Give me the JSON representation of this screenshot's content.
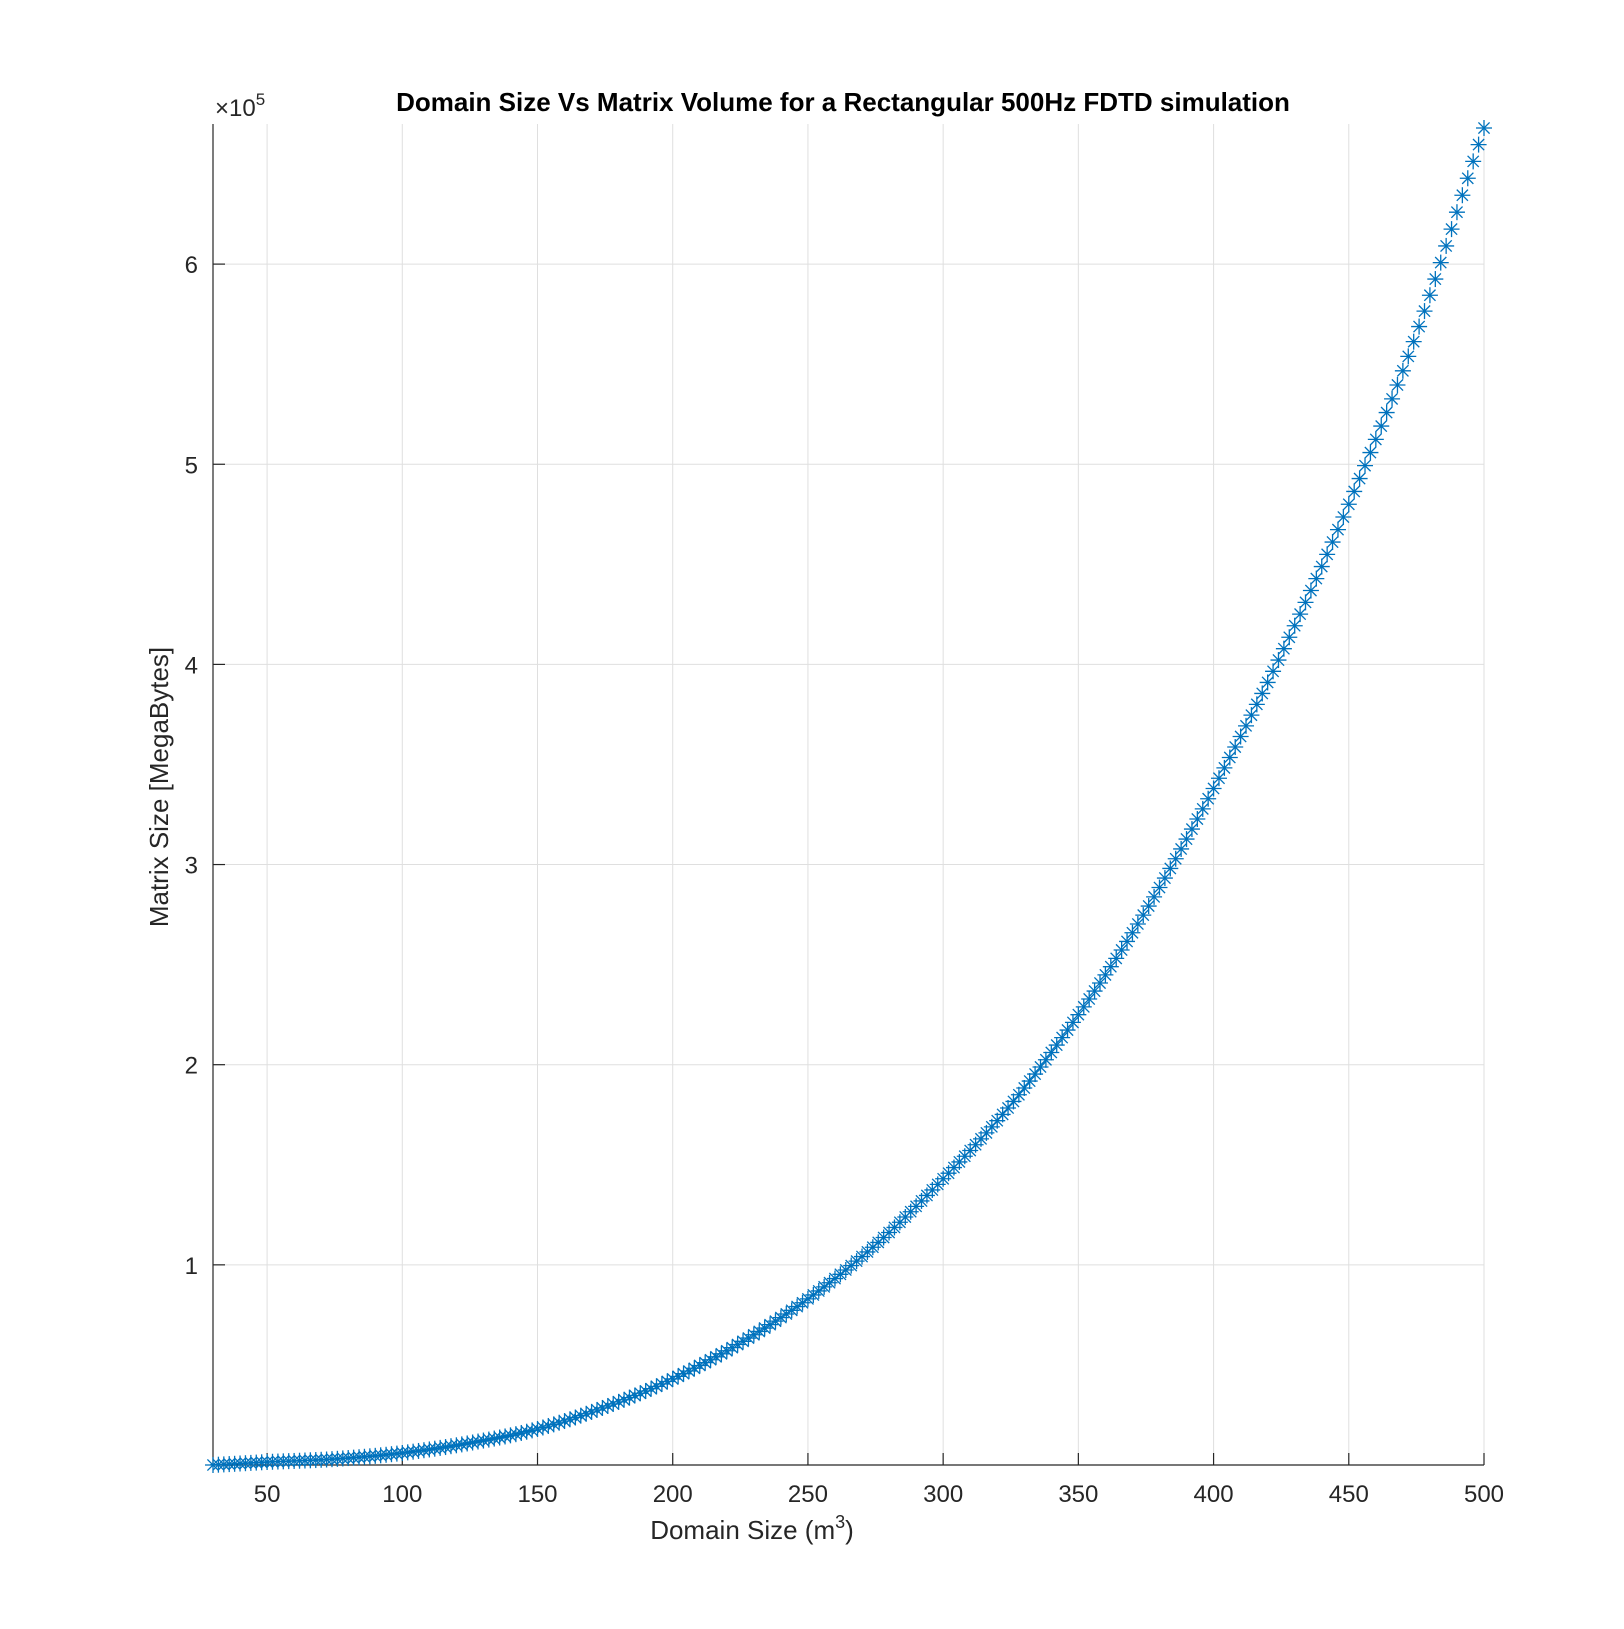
{
  "chart_data": {
    "type": "scatter",
    "title": "Domain Size Vs Matrix Volume for a Rectangular 500Hz FDTD simulation",
    "xlabel": "Domain Size (m",
    "xlabel_superscript": "3",
    "xlabel_suffix": ")",
    "ylabel": "Matrix Size [MegaBytes]",
    "y_exponent_label": "×10",
    "y_exponent_power": "5",
    "y_multiplier": 100000,
    "xlim": [
      30,
      500
    ],
    "ylim": [
      0,
      670000
    ],
    "x_ticks": [
      50,
      100,
      150,
      200,
      250,
      300,
      350,
      400,
      450,
      500
    ],
    "x_tick_labels": [
      "50",
      "100",
      "150",
      "200",
      "250",
      "300",
      "350",
      "400",
      "450",
      "500"
    ],
    "y_ticks": [
      100000,
      200000,
      300000,
      400000,
      500000,
      600000
    ],
    "y_tick_labels": [
      "1",
      "2",
      "3",
      "4",
      "5",
      "6"
    ],
    "grid": true,
    "marker": "asterisk",
    "series_color": "#0072BD",
    "series": [
      {
        "x": [
          30,
          50,
          75,
          100,
          125,
          150,
          175,
          200,
          225,
          250,
          275,
          300,
          325,
          350,
          375,
          400,
          425,
          450,
          475,
          500
        ],
        "y": [
          0,
          1500,
          3000,
          6000,
          11000,
          18000,
          29000,
          43000,
          61000,
          83000,
          110000,
          143000,
          180000,
          225000,
          277000,
          338000,
          405000,
          480000,
          565000,
          668000
        ]
      }
    ]
  }
}
